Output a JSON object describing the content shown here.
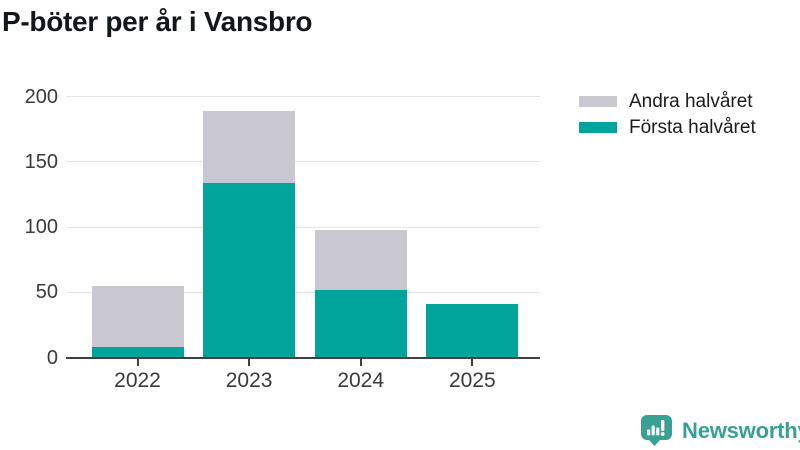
{
  "title": "P-böter per år i Vansbro",
  "colors": {
    "first_half": "#00a49a",
    "second_half": "#c9c7d0",
    "grid": "#e5e5e7",
    "axis": "#3f3f3f",
    "tick_text": "#3a3a3a",
    "title_text": "#13171a",
    "logo": "#38a193"
  },
  "legend": [
    {
      "label": "Andra halvåret",
      "color": "#c9c7d0"
    },
    {
      "label": "Första halvåret",
      "color": "#00a49a"
    }
  ],
  "chart_data": {
    "type": "bar",
    "stacked": true,
    "title": "P-böter per år i Vansbro",
    "categories": [
      "2022",
      "2023",
      "2024",
      "2025"
    ],
    "series": [
      {
        "name": "Första halvåret",
        "color": "#00a49a",
        "values": [
          8,
          134,
          52,
          41
        ]
      },
      {
        "name": "Andra halvåret",
        "color": "#c9c7d0",
        "values": [
          47,
          55,
          46,
          0
        ]
      }
    ],
    "totals": [
      55,
      189,
      98,
      41
    ],
    "xlabel": "",
    "ylabel": "",
    "ylim": [
      0,
      200
    ],
    "yticks": [
      0,
      50,
      100,
      150,
      200
    ],
    "grid": true,
    "legend_position": "top-right"
  },
  "branding": {
    "logo_text": "Newsworthy",
    "logo_icon": "newsworthy-bubble-barchart-icon"
  }
}
